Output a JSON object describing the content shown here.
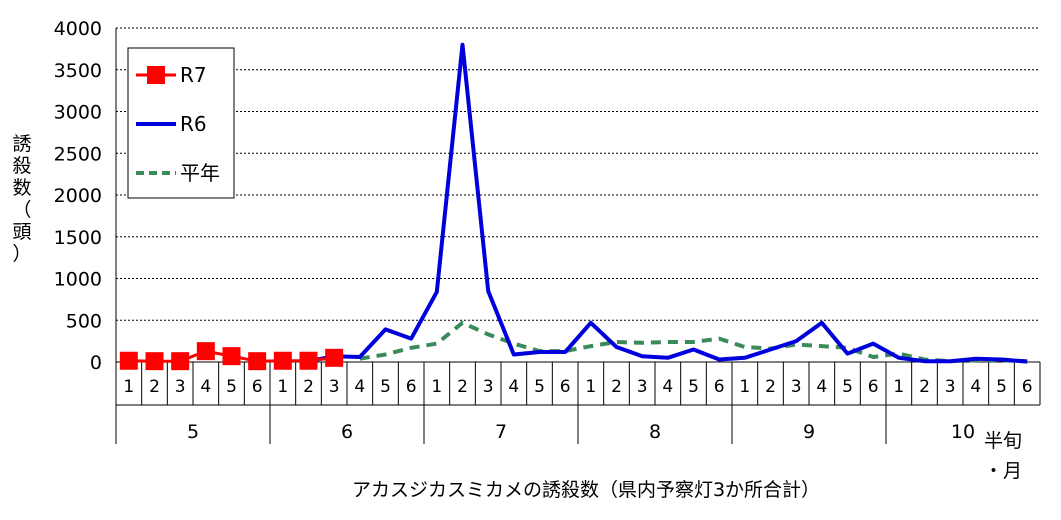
{
  "chart_data": {
    "type": "line",
    "caption": "アカスジカスミカメの誘殺数（県内予察灯3か所合計）",
    "ylabel": "誘殺数（頭）",
    "xlabel_corner": [
      "半旬",
      "・月"
    ],
    "ylim": [
      0,
      4000
    ],
    "yticks": [
      "0",
      "500",
      "1000",
      "1500",
      "2000",
      "2500",
      "3000",
      "3500",
      "4000"
    ],
    "grid": true,
    "legend_position": "top-left",
    "x_sub_labels": [
      "1",
      "2",
      "3",
      "4",
      "5",
      "6",
      "1",
      "2",
      "3",
      "4",
      "5",
      "6",
      "1",
      "2",
      "3",
      "4",
      "5",
      "6",
      "1",
      "2",
      "3",
      "4",
      "5",
      "6",
      "1",
      "2",
      "3",
      "4",
      "5",
      "6",
      "1",
      "2",
      "3",
      "4",
      "5",
      "6"
    ],
    "x_group_labels": [
      "5",
      "6",
      "7",
      "8",
      "9",
      "10"
    ],
    "series": [
      {
        "name": "R7",
        "color": "#ff0000",
        "style": "solid-square-markers",
        "values": [
          15,
          10,
          10,
          130,
          70,
          10,
          15,
          15,
          50
        ]
      },
      {
        "name": "R6",
        "color": "#0000dd",
        "style": "solid",
        "values": [
          null,
          null,
          null,
          null,
          null,
          null,
          null,
          10,
          70,
          60,
          390,
          280,
          840,
          3800,
          850,
          90,
          120,
          120,
          470,
          180,
          70,
          50,
          150,
          30,
          50,
          150,
          250,
          470,
          100,
          220,
          50,
          10,
          10,
          40,
          30,
          5
        ]
      },
      {
        "name": "平年",
        "color": "#3a8a5a",
        "style": "dashed",
        "values": [
          null,
          null,
          null,
          null,
          null,
          null,
          null,
          null,
          null,
          40,
          90,
          170,
          220,
          470,
          330,
          220,
          130,
          130,
          190,
          240,
          230,
          240,
          240,
          280,
          180,
          160,
          210,
          190,
          170,
          60,
          100,
          30,
          10,
          20,
          20,
          10
        ]
      }
    ]
  }
}
